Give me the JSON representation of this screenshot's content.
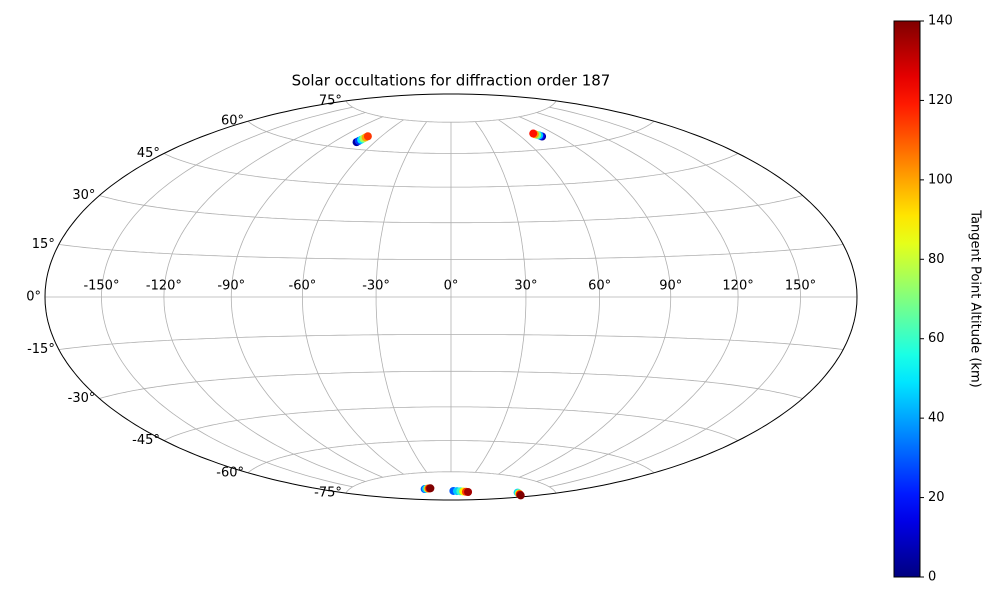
{
  "chart_data": {
    "type": "scatter",
    "projection": "hammer",
    "title": "Solar occultations for diffraction order 187",
    "grid": true,
    "colormap": "jet",
    "colorbar_label": "Tangent Point Altitude (km)",
    "clim": [
      0,
      140
    ],
    "cticks": [
      0,
      20,
      40,
      60,
      80,
      100,
      120,
      140
    ],
    "xlim": [
      -180,
      180
    ],
    "ylim": [
      -90,
      90
    ],
    "xticks": [
      {
        "value": -150,
        "label": "-150°"
      },
      {
        "value": -120,
        "label": "-120°"
      },
      {
        "value": -90,
        "label": "-90°"
      },
      {
        "value": -60,
        "label": "-60°"
      },
      {
        "value": -30,
        "label": "-30°"
      },
      {
        "value": 0,
        "label": "0°"
      },
      {
        "value": 30,
        "label": "30°"
      },
      {
        "value": 60,
        "label": "60°"
      },
      {
        "value": 90,
        "label": "90°"
      },
      {
        "value": 120,
        "label": "120°"
      },
      {
        "value": 150,
        "label": "150°"
      }
    ],
    "yticks": [
      {
        "value": -75,
        "label": "-75°"
      },
      {
        "value": -60,
        "label": "-60°"
      },
      {
        "value": -45,
        "label": "-45°"
      },
      {
        "value": -30,
        "label": "-30°"
      },
      {
        "value": -15,
        "label": "-15°"
      },
      {
        "value": 0,
        "label": "0°"
      },
      {
        "value": 15,
        "label": "15°"
      },
      {
        "value": 30,
        "label": "30°"
      },
      {
        "value": 45,
        "label": "45°"
      },
      {
        "value": 60,
        "label": "60°"
      },
      {
        "value": 75,
        "label": "75°"
      }
    ],
    "x": [
      -73.5,
      -73,
      -72.5,
      -72,
      -71.5,
      -71,
      77,
      76.5,
      76,
      75,
      74,
      73.5,
      -68,
      -64,
      -60,
      -57,
      -54,
      -52,
      8,
      20,
      32,
      42,
      52,
      60,
      150,
      154,
      158,
      162,
      166,
      170
    ],
    "y": [
      63,
      63.6,
      64.2,
      64.8,
      65.4,
      66,
      65.5,
      65.8,
      66.1,
      66.4,
      66.8,
      67.2,
      -83,
      -83,
      -83,
      -83,
      -83,
      -83,
      -85,
      -85,
      -85,
      -85,
      -85,
      -85,
      -80,
      -80,
      -80,
      -80,
      -80,
      -80
    ],
    "c": [
      5,
      25,
      50,
      75,
      100,
      115,
      5,
      20,
      45,
      70,
      100,
      120,
      30,
      45,
      80,
      110,
      130,
      140,
      30,
      45,
      60,
      90,
      115,
      135,
      45,
      60,
      90,
      115,
      130,
      140
    ]
  }
}
